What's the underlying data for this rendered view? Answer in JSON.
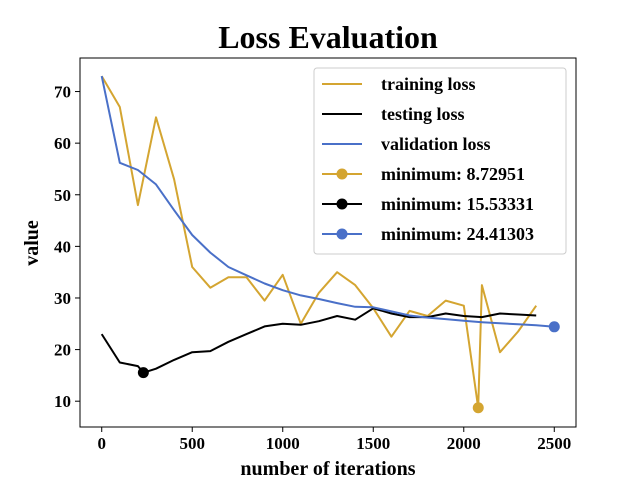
{
  "chart_data": {
    "type": "line",
    "title": "Loss Evaluation",
    "xlabel": "number of iterations",
    "ylabel": "value",
    "xlim": [
      -120,
      2620
    ],
    "ylim": [
      5,
      76.5
    ],
    "xticks": [
      0,
      500,
      1000,
      1500,
      2000,
      2500
    ],
    "yticks": [
      10,
      20,
      30,
      40,
      50,
      60,
      70
    ],
    "grid": false,
    "legend_position": "top-right",
    "series": [
      {
        "name": "training loss",
        "color": "#d4a531",
        "x": [
          0,
          100,
          200,
          300,
          400,
          500,
          600,
          700,
          800,
          900,
          1000,
          1100,
          1200,
          1300,
          1400,
          1500,
          1600,
          1700,
          1800,
          1900,
          2000,
          2080,
          2100,
          2200,
          2300,
          2400
        ],
        "y": [
          73,
          67,
          48,
          65,
          53,
          36,
          32,
          34,
          34,
          29.5,
          34.5,
          25,
          31,
          35,
          32.5,
          28,
          22.5,
          27.5,
          26.5,
          29.5,
          28.5,
          8.73,
          32.5,
          19.5,
          23.5,
          28.5
        ]
      },
      {
        "name": "testing loss",
        "color": "#000000",
        "x": [
          0,
          100,
          200,
          230,
          300,
          400,
          500,
          600,
          700,
          800,
          900,
          1000,
          1100,
          1200,
          1300,
          1400,
          1500,
          1600,
          1700,
          1800,
          1900,
          2000,
          2100,
          2200,
          2300,
          2400
        ],
        "y": [
          23,
          17.5,
          16.8,
          15.53,
          16.3,
          18,
          19.5,
          19.7,
          21.5,
          23,
          24.5,
          25,
          24.8,
          25.5,
          26.5,
          25.8,
          28,
          27,
          26.3,
          26.3,
          27,
          26.5,
          26.3,
          27,
          26.8,
          26.6
        ]
      },
      {
        "name": "validation loss",
        "color": "#4a70c8",
        "x": [
          0,
          100,
          200,
          300,
          400,
          500,
          600,
          700,
          800,
          900,
          1000,
          1100,
          1200,
          1300,
          1400,
          1500,
          1600,
          1700,
          1800,
          1900,
          2000,
          2100,
          2200,
          2300,
          2400,
          2500
        ],
        "y": [
          73,
          56.2,
          54.8,
          52,
          47,
          42.2,
          38.8,
          36,
          34.4,
          32.8,
          31.5,
          30.5,
          29.8,
          29,
          28.3,
          28.2,
          27.4,
          26.6,
          26.2,
          25.9,
          25.6,
          25.3,
          25.1,
          24.9,
          24.7,
          24.41
        ]
      }
    ],
    "minima": [
      {
        "name": "minimum: 8.72951",
        "color": "#d4a531",
        "x": 2080,
        "y": 8.72951
      },
      {
        "name": "minimum: 15.53331",
        "color": "#000000",
        "x": 230,
        "y": 15.53331
      },
      {
        "name": "minimum: 24.41303",
        "color": "#4a70c8",
        "x": 2500,
        "y": 24.41303
      }
    ]
  }
}
